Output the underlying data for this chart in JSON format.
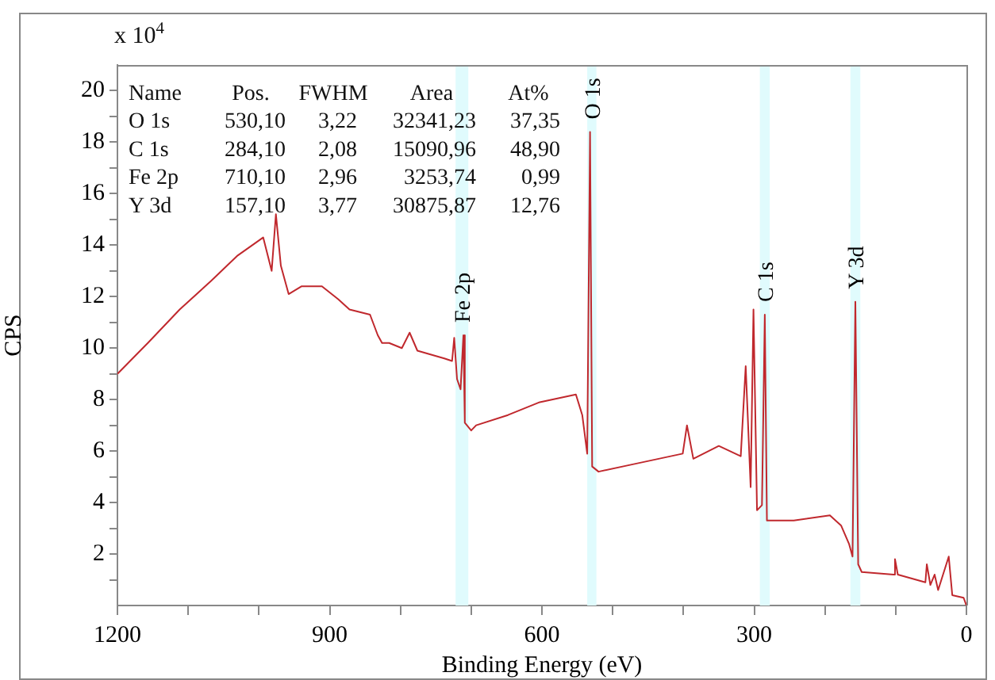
{
  "chart_data": {
    "type": "line",
    "xlabel": "Binding Energy (eV)",
    "ylabel": "CPS",
    "x": [
      1200,
      1157,
      1112,
      1068,
      1030,
      994,
      982,
      976,
      969,
      958,
      940,
      911,
      888,
      872,
      843,
      832,
      826,
      816,
      798,
      787,
      776,
      738,
      727,
      724,
      720,
      715,
      711,
      709,
      700,
      693,
      648,
      603,
      552,
      543,
      536,
      532,
      529,
      520,
      469,
      401,
      395,
      386,
      350,
      319,
      312,
      305,
      301,
      296,
      289,
      285,
      282,
      244,
      193,
      177,
      166,
      161,
      157,
      153,
      148,
      103,
      101,
      97,
      58,
      56,
      51,
      45,
      40,
      25,
      20,
      4,
      0
    ],
    "series": [
      {
        "color": "#c0282d",
        "values": [
          9.0,
          10.2,
          11.5,
          12.6,
          13.6,
          14.3,
          13.0,
          15.2,
          13.2,
          12.1,
          12.4,
          12.4,
          11.9,
          11.5,
          11.3,
          10.5,
          10.2,
          10.2,
          10.0,
          10.6,
          9.9,
          9.6,
          9.5,
          10.4,
          8.8,
          8.4,
          10.5,
          7.1,
          6.8,
          7.0,
          7.4,
          7.9,
          8.2,
          7.4,
          5.9,
          18.4,
          5.4,
          5.2,
          5.5,
          5.9,
          7.0,
          5.7,
          6.2,
          5.8,
          9.3,
          4.6,
          11.5,
          3.7,
          3.9,
          11.3,
          3.3,
          3.3,
          3.5,
          3.1,
          2.4,
          1.9,
          11.8,
          1.6,
          1.3,
          1.2,
          1.8,
          1.2,
          0.9,
          1.6,
          0.8,
          1.2,
          0.6,
          1.9,
          0.4,
          0.3,
          0.0
        ]
      }
    ],
    "xlim": [
      1200,
      0
    ],
    "ylim": [
      0,
      21
    ],
    "xticks": [
      1200,
      {
        "value": 1100,
        "label": null
      },
      {
        "value": 1000,
        "label": null
      },
      900,
      {
        "value": 800,
        "label": null
      },
      {
        "value": 700,
        "label": null
      },
      600,
      {
        "value": 500,
        "label": null
      },
      {
        "value": 400,
        "label": null
      },
      300,
      {
        "value": 200,
        "label": null
      },
      {
        "value": 100,
        "label": null
      },
      0
    ],
    "yticks": [
      {
        "value": 1,
        "label": null
      },
      2,
      {
        "value": 3,
        "label": null
      },
      4,
      {
        "value": 5,
        "label": null
      },
      6,
      {
        "value": 7,
        "label": null
      },
      8,
      {
        "value": 9,
        "label": null
      },
      10,
      {
        "value": 11,
        "label": null
      },
      12,
      {
        "value": 13,
        "label": null
      },
      14,
      {
        "value": 15,
        "label": null
      },
      16,
      {
        "value": 17,
        "label": null
      },
      18,
      {
        "value": 19,
        "label": null
      },
      20
    ],
    "bands": [
      {
        "axis": "x",
        "from": 704,
        "to": 722,
        "label": "Fe 2p",
        "color": "#e0fbfd"
      },
      {
        "axis": "x",
        "from": 523,
        "to": 536,
        "label": "O 1s",
        "color": "#e0fbfd"
      },
      {
        "axis": "x",
        "from": 278,
        "to": 292,
        "label": "C 1s",
        "color": "#e0fbfd"
      },
      {
        "axis": "x",
        "from": 150,
        "to": 164,
        "label": "Y 3d",
        "color": "#e0fbfd"
      }
    ],
    "annotations": [
      "x 10$^{4}$",
      "Name",
      "Pos.",
      "FWHM",
      "Area",
      "At%",
      "O 1s",
      "530,10",
      "3,22",
      "32341,23",
      "37,35",
      "C 1s",
      "284,10",
      "2,08",
      "15090,96",
      "48,90",
      "Fe 2p",
      "710,10",
      "2,96",
      "3253,74",
      "0,99",
      "Y 3d",
      "157,10",
      "3,77",
      "30875,87",
      "12,76"
    ],
    "grid": false,
    "legend": false,
    "marker": "none",
    "line_style": "solid"
  }
}
